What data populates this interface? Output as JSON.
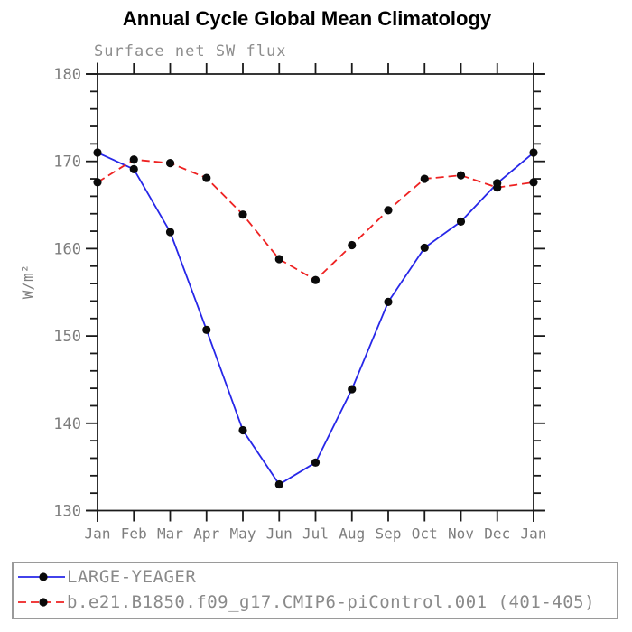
{
  "title": "Annual Cycle Global Mean Climatology",
  "chart_data": {
    "type": "line",
    "title": "Annual Cycle Global Mean Climatology",
    "subtitle": "Surface net SW flux",
    "ylabel": "W/m²",
    "xlabel": "",
    "categories": [
      "Jan",
      "Feb",
      "Mar",
      "Apr",
      "May",
      "Jun",
      "Jul",
      "Aug",
      "Sep",
      "Oct",
      "Nov",
      "Dec",
      "Jan"
    ],
    "ylim": [
      130,
      180
    ],
    "ytick_major": 10,
    "ytick_minor": 2,
    "ytick_labels": [
      "130",
      "140",
      "150",
      "160",
      "170",
      "180"
    ],
    "grid": false,
    "legend_position": "bottom",
    "axis_color": "#1a1a1a",
    "label_color": "#7d7d7d",
    "marker_color": "#0a0a0a",
    "series": [
      {
        "name": "LARGE-YEAGER",
        "color": "#2727e8",
        "style": "solid",
        "marker": "filled-circle",
        "values": [
          171.0,
          169.1,
          161.9,
          150.7,
          139.2,
          133.0,
          135.5,
          143.9,
          153.9,
          160.1,
          163.1,
          167.5,
          171.0
        ]
      },
      {
        "name": "b.e21.B1850.f09_g17.CMIP6-piControl.001 (401-405)",
        "color": "#ee2222",
        "style": "dashed",
        "marker": "filled-circle",
        "values": [
          167.6,
          170.2,
          169.8,
          168.1,
          163.9,
          158.8,
          156.4,
          160.4,
          164.4,
          168.0,
          168.4,
          167.0,
          167.6
        ]
      }
    ]
  }
}
